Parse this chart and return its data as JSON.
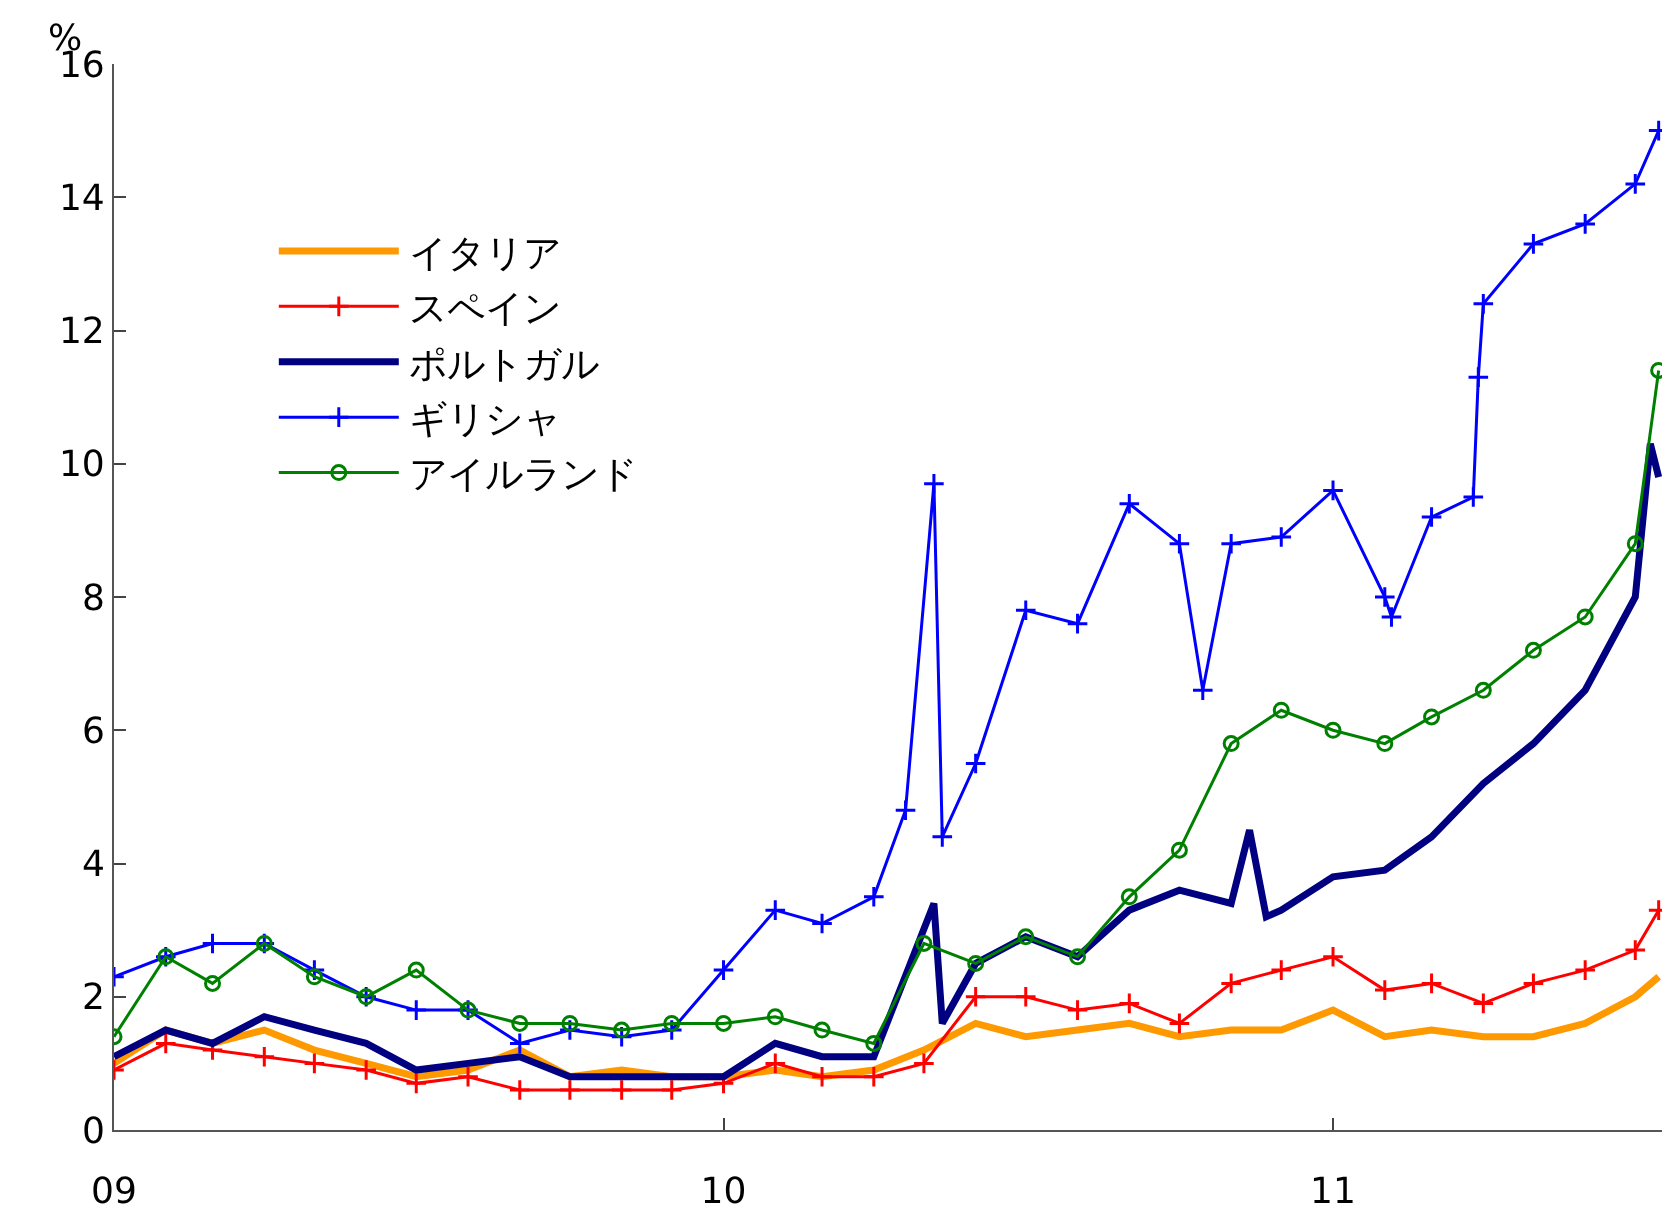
{
  "chart_data": {
    "type": "line",
    "ylabel": "%",
    "x": [
      "2009-01-01",
      "2009-02-01",
      "2009-03-01",
      "2009-04-01",
      "2009-05-01",
      "2009-06-01",
      "2009-07-01",
      "2009-08-01",
      "2009-09-01",
      "2009-10-01",
      "2009-11-01",
      "2009-12-01",
      "2010-01-01",
      "2010-02-01",
      "2010-03-01",
      "2010-04-01",
      "2010-05-01",
      "2010-06-01",
      "2010-07-01",
      "2010-08-01",
      "2010-09-01",
      "2010-10-01",
      "2010-11-01",
      "2010-12-01",
      "2011-01-01",
      "2011-02-01",
      "2011-03-01",
      "2011-04-01",
      "2011-05-01",
      "2011-06-01",
      "2011-07-01",
      "2011-07-15"
    ],
    "xlim": [
      "2009-01-01",
      "2011-07-17"
    ],
    "xticks": [
      {
        "value": "2009-01-01",
        "label": "09"
      },
      {
        "value": "2010-01-01",
        "label": "10"
      },
      {
        "value": "2011-01-01",
        "label": "11"
      }
    ],
    "ylim": [
      0,
      16
    ],
    "yticks": [
      0,
      2,
      4,
      6,
      8,
      10,
      12,
      14,
      16
    ],
    "legend": "top left",
    "series": [
      {
        "name": "イタリア",
        "color": "#ff9900",
        "marker": "none",
        "values": [
          1.0,
          1.5,
          1.3,
          1.5,
          1.2,
          1.0,
          0.8,
          0.9,
          1.2,
          0.8,
          0.9,
          0.8,
          0.8,
          0.9,
          0.8,
          0.9,
          1.2,
          1.6,
          1.4,
          1.5,
          1.6,
          1.4,
          1.5,
          1.5,
          1.8,
          1.4,
          1.5,
          1.4,
          1.4,
          1.6,
          2.0,
          2.3
        ]
      },
      {
        "name": "スペイン",
        "color": "#ff0000",
        "marker": "cross",
        "values": [
          0.9,
          1.3,
          1.2,
          1.1,
          1.0,
          0.9,
          0.7,
          0.8,
          0.6,
          0.6,
          0.6,
          0.6,
          0.7,
          1.0,
          0.8,
          0.8,
          1.0,
          2.0,
          2.0,
          1.8,
          1.9,
          1.6,
          2.2,
          2.4,
          2.6,
          2.1,
          2.2,
          1.9,
          2.2,
          2.4,
          2.7,
          3.3
        ]
      },
      {
        "name": "ポルトガル",
        "color": "#000080",
        "marker": "none",
        "x": [
          "2009-01-01",
          "2009-02-01",
          "2009-03-01",
          "2009-04-01",
          "2009-05-01",
          "2009-06-01",
          "2009-07-01",
          "2009-08-01",
          "2009-09-01",
          "2009-10-01",
          "2009-11-01",
          "2009-12-01",
          "2010-01-01",
          "2010-02-01",
          "2010-03-01",
          "2010-04-01",
          "2010-05-07",
          "2010-05-12",
          "2010-06-01",
          "2010-07-01",
          "2010-08-01",
          "2010-09-01",
          "2010-10-01",
          "2010-11-01",
          "2010-11-12",
          "2010-11-22",
          "2010-12-01",
          "2011-01-01",
          "2011-02-01",
          "2011-03-01",
          "2011-04-01",
          "2011-05-01",
          "2011-06-01",
          "2011-07-01",
          "2011-07-10",
          "2011-07-15"
        ],
        "values": [
          1.1,
          1.5,
          1.3,
          1.7,
          1.5,
          1.3,
          0.9,
          1.0,
          1.1,
          0.8,
          0.8,
          0.8,
          0.8,
          1.3,
          1.1,
          1.1,
          3.4,
          1.6,
          2.5,
          2.9,
          2.6,
          3.3,
          3.6,
          3.4,
          4.5,
          3.2,
          3.3,
          3.8,
          3.9,
          4.4,
          5.2,
          5.8,
          6.6,
          8.0,
          10.3,
          9.8
        ]
      },
      {
        "name": "ギリシャ",
        "color": "#0000ff",
        "marker": "cross",
        "x": [
          "2009-01-01",
          "2009-02-01",
          "2009-03-01",
          "2009-04-01",
          "2009-05-01",
          "2009-06-01",
          "2009-07-01",
          "2009-08-01",
          "2009-09-01",
          "2009-10-01",
          "2009-11-01",
          "2009-12-01",
          "2010-01-01",
          "2010-02-01",
          "2010-03-01",
          "2010-04-01",
          "2010-04-20",
          "2010-05-07",
          "2010-05-12",
          "2010-06-01",
          "2010-07-01",
          "2010-08-01",
          "2010-09-01",
          "2010-10-01",
          "2010-10-15",
          "2010-11-01",
          "2010-12-01",
          "2011-01-01",
          "2011-02-01",
          "2011-02-05",
          "2011-03-01",
          "2011-03-26",
          "2011-03-29",
          "2011-04-01",
          "2011-05-01",
          "2011-06-01",
          "2011-07-01",
          "2011-07-15"
        ],
        "values": [
          2.3,
          2.6,
          2.8,
          2.8,
          2.4,
          2.0,
          1.8,
          1.8,
          1.3,
          1.5,
          1.4,
          1.5,
          2.4,
          3.3,
          3.1,
          3.5,
          4.8,
          9.7,
          4.4,
          5.5,
          7.8,
          7.6,
          9.4,
          8.8,
          6.6,
          8.8,
          8.9,
          9.6,
          8.0,
          7.7,
          9.2,
          9.5,
          11.3,
          12.4,
          13.3,
          13.6,
          14.2,
          15.0
        ]
      },
      {
        "name": "アイルランド",
        "color": "#008000",
        "marker": "circle",
        "values": [
          1.4,
          2.6,
          2.2,
          2.8,
          2.3,
          2.0,
          2.4,
          1.8,
          1.6,
          1.6,
          1.5,
          1.6,
          1.6,
          1.7,
          1.5,
          1.3,
          2.8,
          2.5,
          2.9,
          2.6,
          3.5,
          4.2,
          5.8,
          6.3,
          6.0,
          5.8,
          6.2,
          6.6,
          7.2,
          7.7,
          8.8,
          11.4
        ]
      }
    ]
  }
}
